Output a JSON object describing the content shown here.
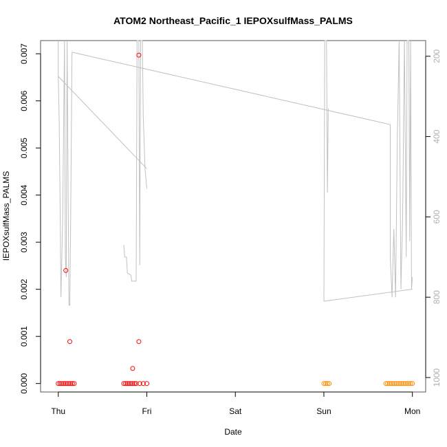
{
  "chart_data": {
    "type": "scatter",
    "title": "ATOM2 Northeast_Pacific_1 IEPOXsulfMass_PALMS",
    "xlabel": "Date",
    "ylabel": "IEPOXsulfMass_PALMS",
    "x_ticks": [
      "Thu",
      "Fri",
      "Sat",
      "Sun",
      "Mon"
    ],
    "xlim_days": [
      -0.2,
      4.15
    ],
    "ylim": [
      -0.00018,
      0.00728
    ],
    "y_ticks": [
      0.0,
      0.001,
      0.002,
      0.003,
      0.004,
      0.005,
      0.006,
      0.007
    ],
    "y_tick_labels": [
      "0.000",
      "0.001",
      "0.002",
      "0.003",
      "0.004",
      "0.005",
      "0.006",
      "0.007"
    ],
    "right_axis": {
      "label": "",
      "reversed": true,
      "ylim": [
        1036,
        161
      ],
      "ticks": [
        200,
        400,
        600,
        800,
        1000
      ],
      "color": "#b0b0b0"
    },
    "grid": false,
    "colors": {
      "series_red": "#ff0000",
      "series_orange": "#ff8c00",
      "altitude_line": "#c0c0c0"
    },
    "series": [
      {
        "color": "#ff0000",
        "points": [
          {
            "x": 0.0,
            "y": 0.0
          },
          {
            "x": 0.02,
            "y": 0.0
          },
          {
            "x": 0.04,
            "y": 0.0
          },
          {
            "x": 0.06,
            "y": 0.0
          },
          {
            "x": 0.08,
            "y": 0.0
          },
          {
            "x": 0.1,
            "y": 0.0
          },
          {
            "x": 0.12,
            "y": 0.0
          },
          {
            "x": 0.14,
            "y": 0.0
          },
          {
            "x": 0.16,
            "y": 0.0
          },
          {
            "x": 0.18,
            "y": 0.0
          },
          {
            "x": 0.085,
            "y": 0.0024
          },
          {
            "x": 0.13,
            "y": 0.00089
          },
          {
            "x": 0.74,
            "y": 0.0
          },
          {
            "x": 0.76,
            "y": 0.0
          },
          {
            "x": 0.78,
            "y": 0.0
          },
          {
            "x": 0.8,
            "y": 0.0
          },
          {
            "x": 0.82,
            "y": 0.0
          },
          {
            "x": 0.84,
            "y": 0.0
          },
          {
            "x": 0.86,
            "y": 0.0
          },
          {
            "x": 0.88,
            "y": 0.0
          },
          {
            "x": 0.92,
            "y": 0.0
          },
          {
            "x": 0.96,
            "y": 0.0
          },
          {
            "x": 1.0,
            "y": 0.0
          },
          {
            "x": 0.84,
            "y": 0.00032
          },
          {
            "x": 0.91,
            "y": 0.00089
          },
          {
            "x": 0.91,
            "y": 0.00697
          }
        ]
      },
      {
        "color": "#ff8c00",
        "points": [
          {
            "x": 3.0,
            "y": 0.0
          },
          {
            "x": 3.02,
            "y": 0.0
          },
          {
            "x": 3.04,
            "y": 0.0
          },
          {
            "x": 3.06,
            "y": 0.0
          },
          {
            "x": 3.7,
            "y": 0.0
          },
          {
            "x": 3.72,
            "y": 0.0
          },
          {
            "x": 3.74,
            "y": 0.0
          },
          {
            "x": 3.76,
            "y": 0.0
          },
          {
            "x": 3.78,
            "y": 0.0
          },
          {
            "x": 3.8,
            "y": 0.0
          },
          {
            "x": 3.82,
            "y": 0.0
          },
          {
            "x": 3.84,
            "y": 0.0
          },
          {
            "x": 3.86,
            "y": 0.0
          },
          {
            "x": 3.88,
            "y": 0.0
          },
          {
            "x": 3.9,
            "y": 0.0
          },
          {
            "x": 3.92,
            "y": 0.0
          },
          {
            "x": 3.94,
            "y": 0.0
          },
          {
            "x": 3.96,
            "y": 0.0
          },
          {
            "x": 3.98,
            "y": 0.0
          },
          {
            "x": 4.0,
            "y": 0.0
          }
        ]
      }
    ],
    "altitude_segments": [
      [
        {
          "x": 0.0,
          "y": 161
        },
        {
          "x": 0.0,
          "y": 250
        },
        {
          "x": 0.01,
          "y": 350
        },
        {
          "x": 0.02,
          "y": 550
        },
        {
          "x": 0.03,
          "y": 800
        },
        {
          "x": 0.05,
          "y": 600
        },
        {
          "x": 0.07,
          "y": 161
        },
        {
          "x": 0.08,
          "y": 700
        },
        {
          "x": 0.09,
          "y": 750
        },
        {
          "x": 0.1,
          "y": 161
        },
        {
          "x": 0.12,
          "y": 820
        },
        {
          "x": 0.13,
          "y": 820
        },
        {
          "x": 0.14,
          "y": 600
        },
        {
          "x": 0.155,
          "y": 190
        }
      ],
      [
        {
          "x": 0.0,
          "y": 250
        },
        {
          "x": 1.0,
          "y": 480
        }
      ],
      [
        {
          "x": 0.155,
          "y": 190
        },
        {
          "x": 3.75,
          "y": 370
        },
        {
          "x": 3.75,
          "y": 700
        },
        {
          "x": 3.77,
          "y": 800
        },
        {
          "x": 3.79,
          "y": 630
        },
        {
          "x": 3.81,
          "y": 800
        },
        {
          "x": 3.83,
          "y": 400
        },
        {
          "x": 3.85,
          "y": 161
        },
        {
          "x": 3.87,
          "y": 780
        },
        {
          "x": 3.89,
          "y": 600
        },
        {
          "x": 3.91,
          "y": 161
        },
        {
          "x": 3.93,
          "y": 700
        },
        {
          "x": 3.94,
          "y": 161
        },
        {
          "x": 3.96,
          "y": 161
        },
        {
          "x": 3.97,
          "y": 660
        },
        {
          "x": 3.98,
          "y": 161
        },
        {
          "x": 3.99,
          "y": 780
        },
        {
          "x": 4.0,
          "y": 750
        }
      ],
      [
        {
          "x": 0.74,
          "y": 670
        },
        {
          "x": 0.75,
          "y": 700
        },
        {
          "x": 0.77,
          "y": 700
        },
        {
          "x": 0.78,
          "y": 740
        },
        {
          "x": 0.82,
          "y": 745
        },
        {
          "x": 0.83,
          "y": 760
        },
        {
          "x": 0.88,
          "y": 760
        },
        {
          "x": 0.89,
          "y": 161
        },
        {
          "x": 0.91,
          "y": 161
        },
        {
          "x": 0.92,
          "y": 720
        },
        {
          "x": 0.93,
          "y": 161
        },
        {
          "x": 0.95,
          "y": 161
        },
        {
          "x": 0.96,
          "y": 350
        },
        {
          "x": 0.98,
          "y": 480
        },
        {
          "x": 1.0,
          "y": 530
        }
      ],
      [
        {
          "x": 3.0,
          "y": 810
        },
        {
          "x": 3.01,
          "y": 161
        },
        {
          "x": 3.03,
          "y": 161
        },
        {
          "x": 3.04,
          "y": 540
        },
        {
          "x": 3.05,
          "y": 330
        }
      ],
      [
        {
          "x": 3.0,
          "y": 810
        },
        {
          "x": 4.0,
          "y": 780
        }
      ]
    ]
  }
}
